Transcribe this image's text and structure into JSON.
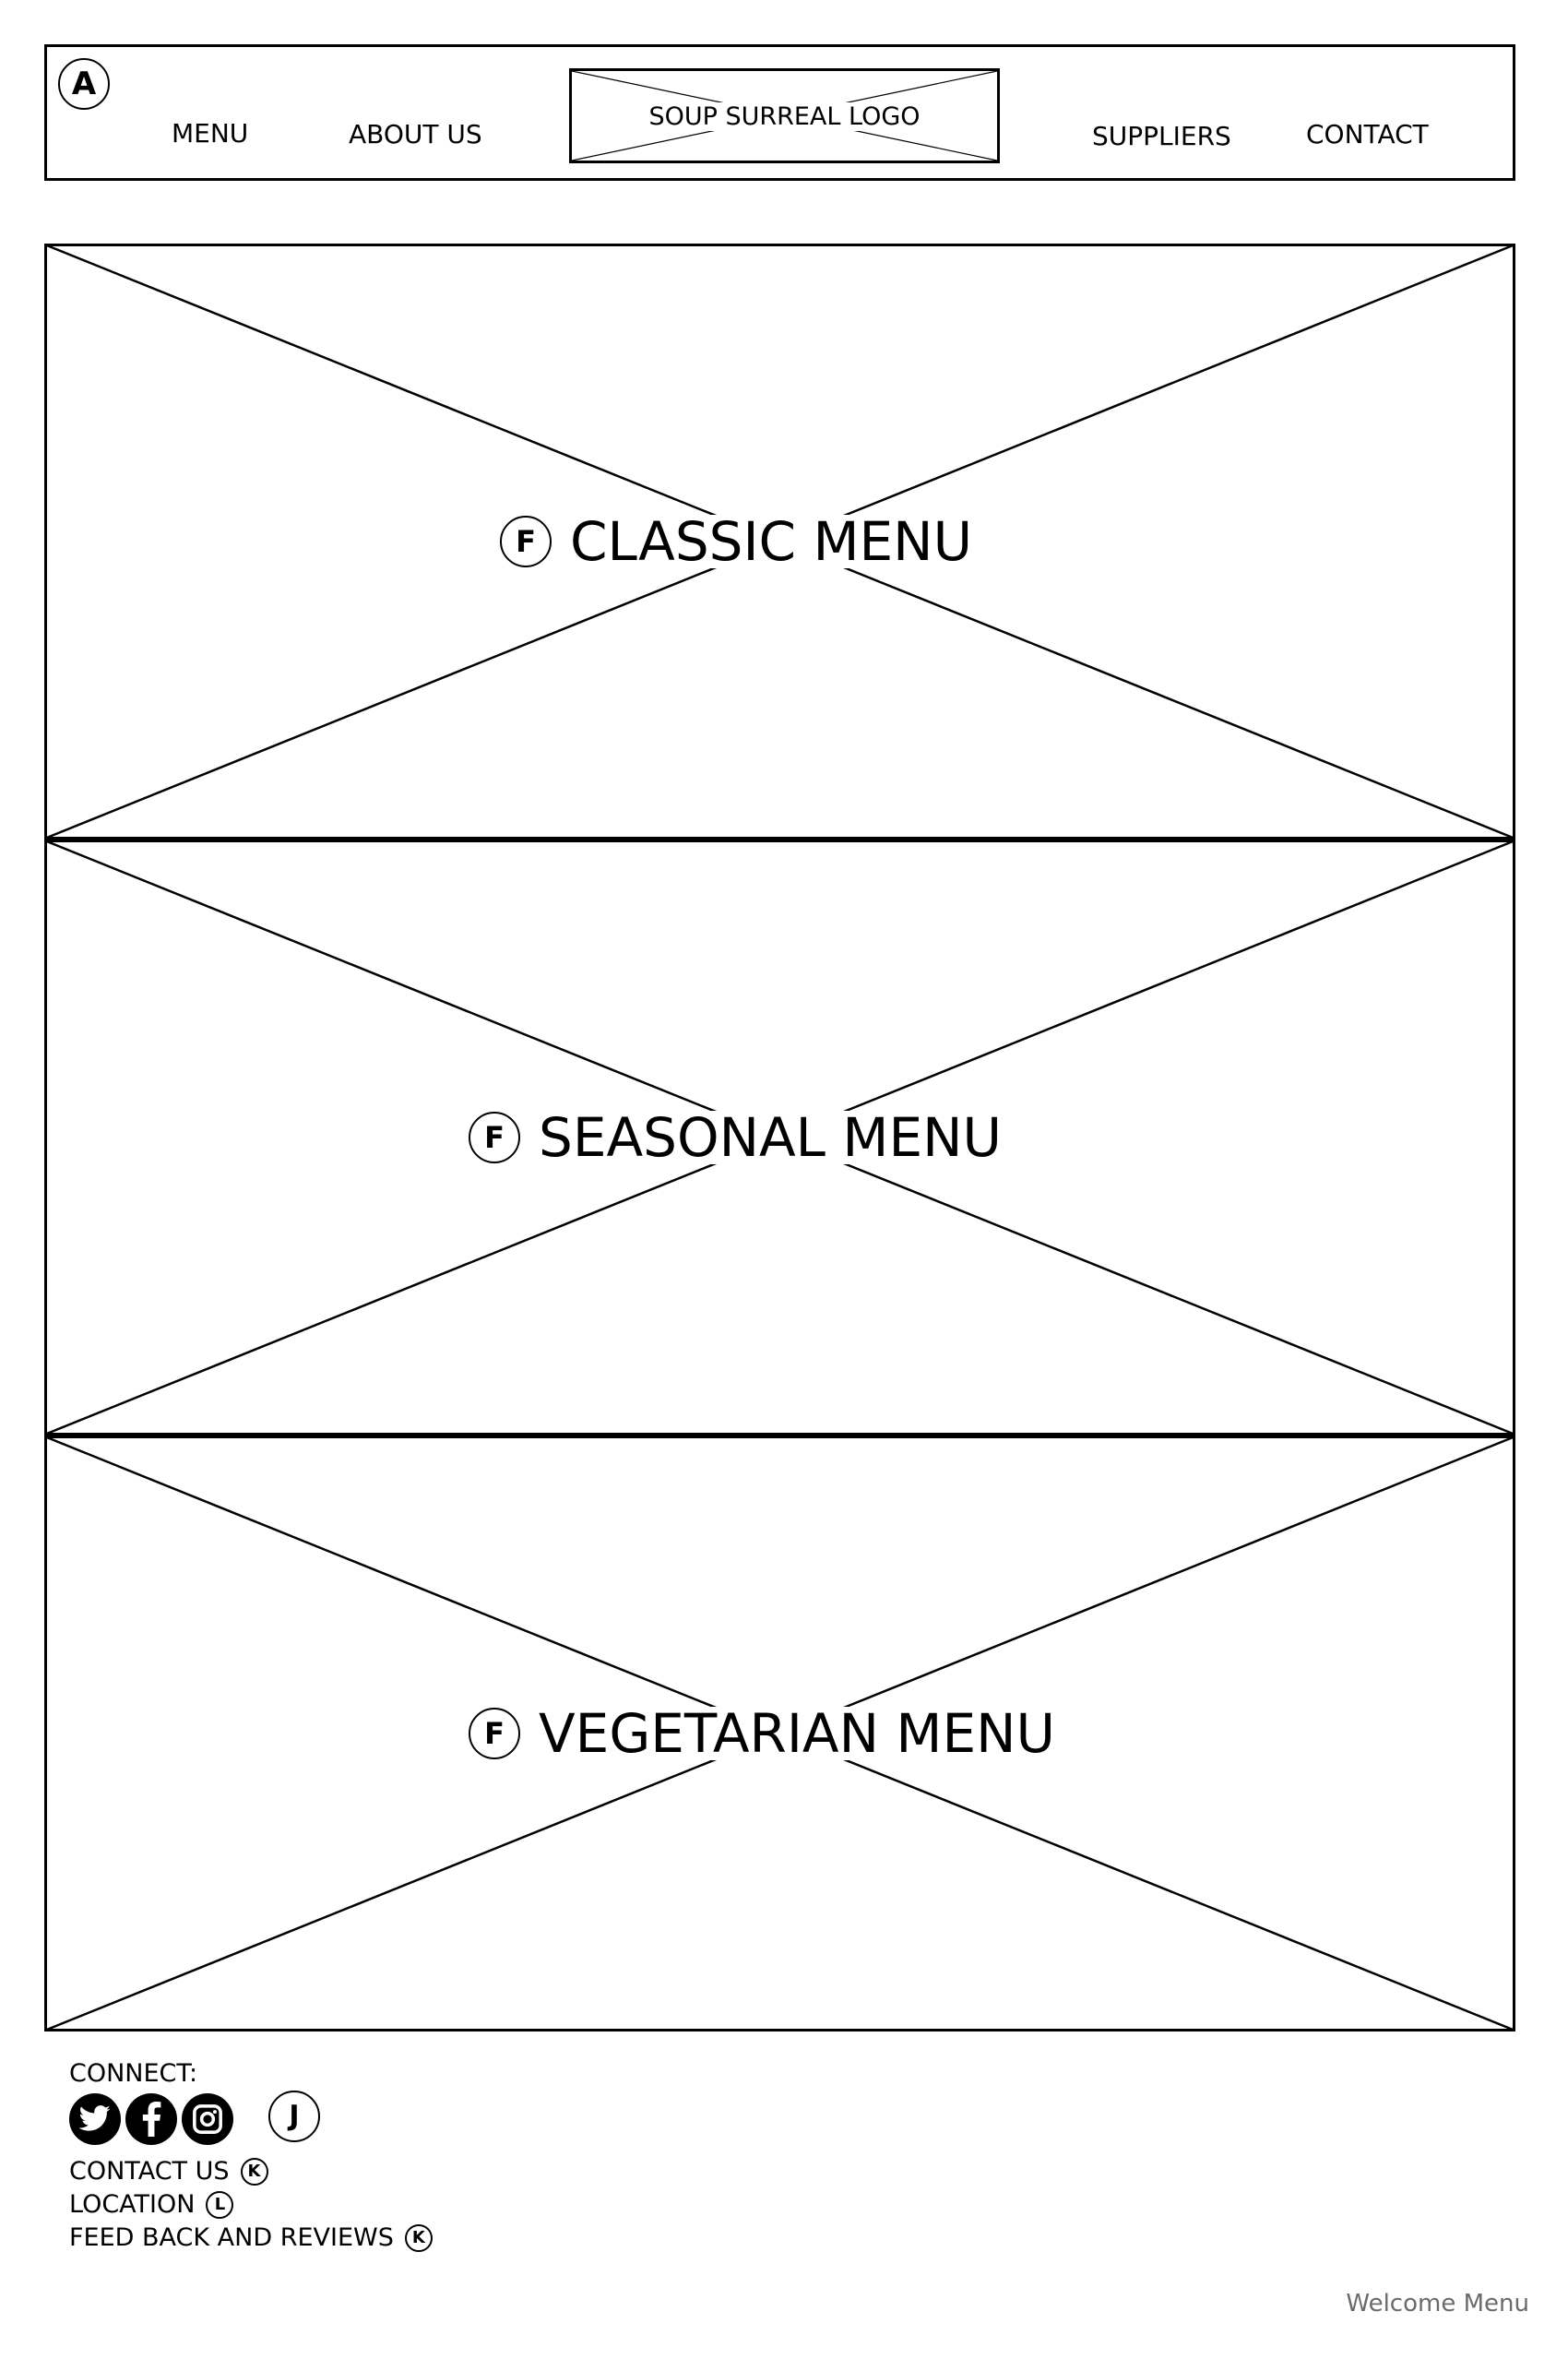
{
  "header": {
    "annotation_marker": "A",
    "nav_left": [
      "MENU",
      "ABOUT US"
    ],
    "logo_placeholder": "SOUP SURREAL LOGO",
    "nav_right": [
      "SUPPLIERS",
      "CONTACT"
    ]
  },
  "panels": [
    {
      "annotation_marker": "F",
      "label": "CLASSIC MENU"
    },
    {
      "annotation_marker": "F",
      "label": "SEASONAL MENU"
    },
    {
      "annotation_marker": "F",
      "label": "VEGETARIAN MENU"
    }
  ],
  "footer": {
    "connect_label": "CONNECT:",
    "social_icons": [
      "twitter-icon",
      "facebook-icon",
      "instagram-icon"
    ],
    "social_annotation_marker": "J",
    "links": [
      {
        "label": "CONTACT US",
        "annotation_marker": "K"
      },
      {
        "label": "LOCATION",
        "annotation_marker": "L"
      },
      {
        "label": "FEED BACK AND REVIEWS",
        "annotation_marker": "K"
      }
    ]
  },
  "page_name": "Welcome Menu"
}
